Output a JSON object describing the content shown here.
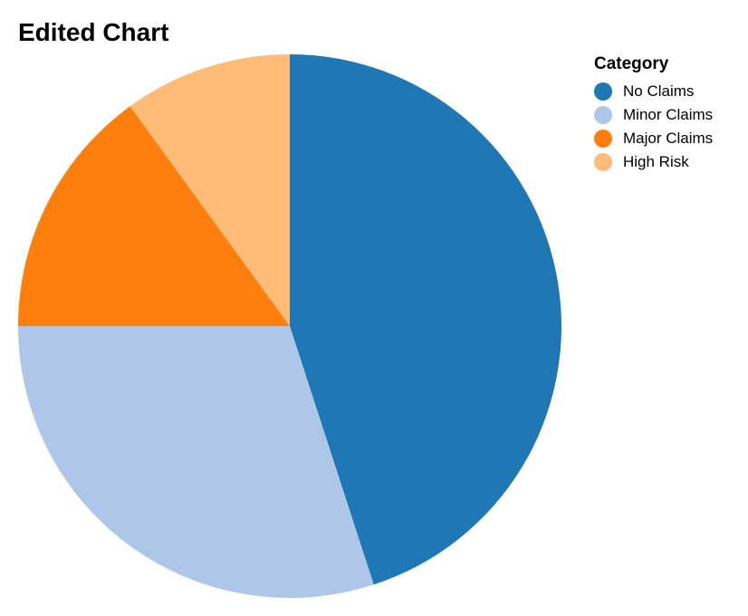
{
  "chart_data": {
    "type": "pie",
    "title": "Edited Chart",
    "legend": {
      "title": "Category",
      "placement": "top-right"
    },
    "categories": [
      "No Claims",
      "Minor Claims",
      "Major Claims",
      "High Risk"
    ],
    "values": [
      45,
      30,
      15,
      10
    ],
    "colors": [
      "#1f77b4",
      "#aec7e8",
      "#ff7f0e",
      "#ffbb78"
    ],
    "start_angle": "12 o'clock",
    "direction": "clockwise"
  }
}
